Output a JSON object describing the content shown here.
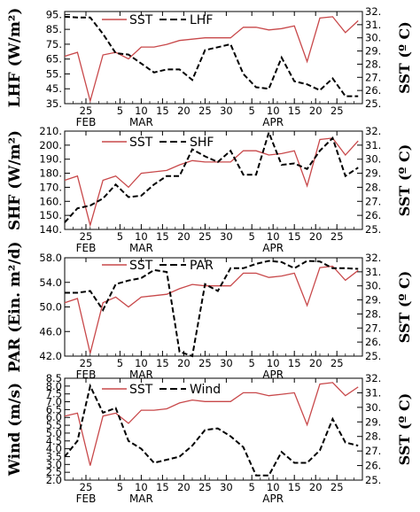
{
  "chart_data": [
    {
      "type": "line",
      "ylabel": "LHF (W/m²)",
      "ylabel_right": "SST (º C)",
      "yticks": [
        35,
        45,
        55,
        65,
        75,
        85,
        95
      ],
      "yticks_labels": [
        "35.",
        "45.",
        "55.",
        "65.",
        "75.",
        "85.",
        "95."
      ],
      "ylim": [
        35,
        97
      ],
      "yticks_right": [
        25,
        26,
        27,
        28,
        29,
        30,
        31,
        32
      ],
      "yticks_right_labels": [
        "25.",
        "26.",
        "27.",
        "28.",
        "29.",
        "30.",
        "31.",
        "32."
      ],
      "ylim_right": [
        25,
        32
      ],
      "x_tick_labels": [
        "25",
        "5",
        "10",
        "15",
        "20",
        "25",
        "30",
        "5",
        "10",
        "15",
        "20",
        "25"
      ],
      "month_labels": [
        "FEB",
        "MAR",
        "APR"
      ],
      "legend": {
        "placement": "top-left",
        "entries": [
          "SST",
          "LHF"
        ]
      },
      "series": [
        {
          "name": "SST",
          "axis": "right",
          "color": "#c8484a",
          "dash": "solid",
          "x": [
            "2009-02-20",
            "2009-02-23",
            "2009-02-26",
            "2009-03-01",
            "2009-03-04",
            "2009-03-07",
            "2009-03-10",
            "2009-03-13",
            "2009-03-16",
            "2009-03-19",
            "2009-03-22",
            "2009-03-25",
            "2009-03-28",
            "2009-03-31",
            "2009-04-03",
            "2009-04-06",
            "2009-04-09",
            "2009-04-12",
            "2009-04-15",
            "2009-04-18",
            "2009-04-21",
            "2009-04-24",
            "2009-04-27",
            "2009-04-30"
          ],
          "values": [
            28.6,
            28.9,
            25.2,
            28.7,
            28.9,
            28.4,
            29.3,
            29.3,
            29.5,
            29.8,
            29.9,
            30.0,
            30.0,
            30.0,
            30.8,
            30.8,
            30.6,
            30.7,
            30.9,
            28.2,
            31.5,
            31.6,
            30.4,
            31.3
          ]
        },
        {
          "name": "LHF",
          "axis": "left",
          "color": "#000000",
          "dash": "dashed",
          "x": [
            "2009-02-20",
            "2009-02-23",
            "2009-02-26",
            "2009-03-01",
            "2009-03-04",
            "2009-03-07",
            "2009-03-10",
            "2009-03-13",
            "2009-03-16",
            "2009-03-19",
            "2009-03-22",
            "2009-03-25",
            "2009-03-28",
            "2009-03-31",
            "2009-04-03",
            "2009-04-06",
            "2009-04-09",
            "2009-04-12",
            "2009-04-15",
            "2009-04-18",
            "2009-04-21",
            "2009-04-24",
            "2009-04-27",
            "2009-04-30"
          ],
          "values": [
            93.5,
            93,
            93,
            82,
            69,
            68,
            62,
            56,
            58,
            58,
            51,
            71,
            73,
            75,
            55,
            46,
            45,
            66,
            50,
            48,
            44,
            52,
            40,
            40
          ]
        }
      ]
    },
    {
      "type": "line",
      "ylabel": "SHF (W/m²)",
      "ylabel_right": "SST (º C)",
      "yticks": [
        140,
        150,
        160,
        170,
        180,
        190,
        200,
        210
      ],
      "yticks_labels": [
        "140.",
        "150.",
        "160.",
        "170.",
        "180.",
        "190.",
        "200.",
        "210."
      ],
      "ylim": [
        140,
        210
      ],
      "yticks_right": [
        25,
        26,
        27,
        28,
        29,
        30,
        31,
        32
      ],
      "yticks_right_labels": [
        "25.",
        "26.",
        "27.",
        "28.",
        "29.",
        "30.",
        "31.",
        "32."
      ],
      "ylim_right": [
        25,
        32
      ],
      "x_tick_labels": [
        "25",
        "5",
        "10",
        "15",
        "20",
        "25",
        "30",
        "5",
        "10",
        "15",
        "20",
        "25"
      ],
      "month_labels": [
        "FEB",
        "MAR",
        "APR"
      ],
      "legend": {
        "placement": "top-center",
        "entries": [
          "SST",
          "SHF"
        ]
      },
      "series": [
        {
          "name": "SST",
          "axis": "right",
          "color": "#c8484a",
          "dash": "solid",
          "x": [
            "2009-02-20",
            "2009-02-23",
            "2009-02-26",
            "2009-03-01",
            "2009-03-04",
            "2009-03-07",
            "2009-03-10",
            "2009-03-13",
            "2009-03-16",
            "2009-03-19",
            "2009-03-22",
            "2009-03-25",
            "2009-03-28",
            "2009-03-31",
            "2009-04-03",
            "2009-04-06",
            "2009-04-09",
            "2009-04-12",
            "2009-04-15",
            "2009-04-18",
            "2009-04-21",
            "2009-04-24",
            "2009-04-27",
            "2009-04-30"
          ],
          "values": [
            28.5,
            28.8,
            25.3,
            28.5,
            28.8,
            28.0,
            29.0,
            29.1,
            29.2,
            29.6,
            29.9,
            29.8,
            29.8,
            29.8,
            30.6,
            30.6,
            30.3,
            30.4,
            30.6,
            28.1,
            31.4,
            31.5,
            30.3,
            31.3
          ]
        },
        {
          "name": "SHF",
          "axis": "left",
          "color": "#000000",
          "dash": "dashed",
          "x": [
            "2009-02-20",
            "2009-02-23",
            "2009-02-26",
            "2009-03-01",
            "2009-03-04",
            "2009-03-07",
            "2009-03-10",
            "2009-03-13",
            "2009-03-16",
            "2009-03-19",
            "2009-03-22",
            "2009-03-25",
            "2009-03-28",
            "2009-03-31",
            "2009-04-03",
            "2009-04-06",
            "2009-04-09",
            "2009-04-12",
            "2009-04-15",
            "2009-04-18",
            "2009-04-21",
            "2009-04-24",
            "2009-04-27",
            "2009-04-30"
          ],
          "values": [
            145,
            155,
            157,
            162,
            172,
            163,
            164,
            172,
            178,
            178,
            197,
            192,
            188,
            196,
            179,
            179,
            209,
            186,
            187,
            183,
            196,
            205,
            178,
            184
          ]
        }
      ]
    },
    {
      "type": "line",
      "ylabel": "PAR (Ein. m²/d)",
      "ylabel_right": "SST (º C)",
      "yticks": [
        42,
        46,
        50,
        54,
        58
      ],
      "yticks_labels": [
        "42.0",
        "46.0",
        "50.0",
        "54.0",
        "58.0"
      ],
      "ylim": [
        42,
        58
      ],
      "yticks_right": [
        25,
        26,
        27,
        28,
        29,
        30,
        31,
        32
      ],
      "yticks_right_labels": [
        "25.",
        "26.",
        "27.",
        "28.",
        "29.",
        "30.",
        "31.",
        "32."
      ],
      "ylim_right": [
        25,
        32
      ],
      "x_tick_labels": [
        "25",
        "5",
        "10",
        "15",
        "20",
        "25",
        "30",
        "5",
        "10",
        "15",
        "20",
        "25"
      ],
      "month_labels": [
        "FEB",
        "MAR",
        "APR"
      ],
      "legend": {
        "placement": "top-center",
        "entries": [
          "SST",
          "PAR"
        ]
      },
      "series": [
        {
          "name": "SST",
          "axis": "right",
          "color": "#c8484a",
          "dash": "solid",
          "x": [
            "2009-02-20",
            "2009-02-23",
            "2009-02-26",
            "2009-03-01",
            "2009-03-04",
            "2009-03-07",
            "2009-03-10",
            "2009-03-13",
            "2009-03-16",
            "2009-03-19",
            "2009-03-22",
            "2009-03-25",
            "2009-03-28",
            "2009-03-31",
            "2009-04-03",
            "2009-04-06",
            "2009-04-09",
            "2009-04-12",
            "2009-04-15",
            "2009-04-18",
            "2009-04-21",
            "2009-04-24",
            "2009-04-27",
            "2009-04-30"
          ],
          "values": [
            28.8,
            29.1,
            25.2,
            28.8,
            29.2,
            28.5,
            29.2,
            29.3,
            29.4,
            29.8,
            30.1,
            30.0,
            30.0,
            30.0,
            30.9,
            30.9,
            30.6,
            30.7,
            30.9,
            28.6,
            31.3,
            31.4,
            30.4,
            31.1
          ]
        },
        {
          "name": "PAR",
          "axis": "left",
          "color": "#000000",
          "dash": "dashed",
          "x": [
            "2009-02-20",
            "2009-02-23",
            "2009-02-26",
            "2009-03-01",
            "2009-03-04",
            "2009-03-07",
            "2009-03-10",
            "2009-03-13",
            "2009-03-16",
            "2009-03-19",
            "2009-03-22",
            "2009-03-25",
            "2009-03-28",
            "2009-03-31",
            "2009-04-03",
            "2009-04-06",
            "2009-04-09",
            "2009-04-12",
            "2009-04-15",
            "2009-04-18",
            "2009-04-21",
            "2009-04-24",
            "2009-04-27",
            "2009-04-30"
          ],
          "values": [
            52.3,
            52.3,
            52.6,
            49.5,
            53.7,
            54.3,
            54.7,
            56.0,
            55.7,
            42.7,
            42.0,
            53.7,
            52.6,
            56.3,
            56.3,
            57.0,
            57.5,
            57.3,
            56.3,
            57.5,
            57.4,
            56.3,
            56.3,
            56.2
          ]
        }
      ]
    },
    {
      "type": "line",
      "ylabel": "Wind (m/s)",
      "ylabel_right": "SST (º C)",
      "yticks": [
        2,
        2.5,
        3,
        3.5,
        4,
        4.5,
        5,
        5.5,
        6,
        6.5,
        7,
        7.5,
        8,
        8.5
      ],
      "yticks_labels": [
        "2.0",
        "2.5",
        "3.0",
        "3.5",
        "4.0",
        "4.5",
        "5.0",
        "5.5",
        "6.0",
        "6.5",
        "7.0",
        "7.5",
        "8.0",
        "8.5"
      ],
      "ylim": [
        2,
        8.5
      ],
      "yticks_right": [
        25,
        26,
        27,
        28,
        29,
        30,
        31,
        32
      ],
      "yticks_right_labels": [
        "25.",
        "26.",
        "27.",
        "28.",
        "29.",
        "30.",
        "31.",
        "32."
      ],
      "ylim_right": [
        25,
        32
      ],
      "x_tick_labels": [
        "25",
        "5",
        "10",
        "15",
        "20",
        "25",
        "30",
        "5",
        "10",
        "15",
        "20",
        "25"
      ],
      "month_labels": [
        "FEB",
        "MAR",
        "APR"
      ],
      "legend": {
        "placement": "top-center",
        "entries": [
          "SST",
          "Wind"
        ]
      },
      "series": [
        {
          "name": "SST",
          "axis": "right",
          "color": "#c8484a",
          "dash": "solid",
          "x": [
            "2009-02-20",
            "2009-02-23",
            "2009-02-26",
            "2009-03-01",
            "2009-03-04",
            "2009-03-07",
            "2009-03-10",
            "2009-03-13",
            "2009-03-16",
            "2009-03-19",
            "2009-03-22",
            "2009-03-25",
            "2009-03-28",
            "2009-03-31",
            "2009-04-03",
            "2009-04-06",
            "2009-04-09",
            "2009-04-12",
            "2009-04-15",
            "2009-04-18",
            "2009-04-21",
            "2009-04-24",
            "2009-04-27",
            "2009-04-30"
          ],
          "values": [
            29.4,
            29.6,
            26.0,
            29.4,
            29.6,
            28.9,
            29.8,
            29.8,
            29.9,
            30.3,
            30.5,
            30.4,
            30.4,
            30.4,
            31.0,
            31.0,
            30.8,
            30.9,
            31.0,
            28.8,
            31.6,
            31.7,
            30.8,
            31.4
          ]
        },
        {
          "name": "Wind",
          "axis": "left",
          "color": "#000000",
          "dash": "dashed",
          "x": [
            "2009-02-20",
            "2009-02-23",
            "2009-02-26",
            "2009-03-01",
            "2009-03-04",
            "2009-03-07",
            "2009-03-10",
            "2009-03-13",
            "2009-03-16",
            "2009-03-19",
            "2009-03-22",
            "2009-03-25",
            "2009-03-28",
            "2009-03-31",
            "2009-04-03",
            "2009-04-06",
            "2009-04-09",
            "2009-04-12",
            "2009-04-15",
            "2009-04-18",
            "2009-04-21",
            "2009-04-24",
            "2009-04-27",
            "2009-04-30"
          ],
          "values": [
            3.5,
            4.5,
            8.0,
            6.3,
            6.6,
            4.5,
            4.0,
            3.1,
            3.3,
            3.5,
            4.2,
            5.2,
            5.3,
            4.8,
            4.1,
            2.3,
            2.3,
            3.8,
            3.1,
            3.1,
            3.9,
            5.9,
            4.4,
            4.2
          ]
        }
      ]
    }
  ]
}
